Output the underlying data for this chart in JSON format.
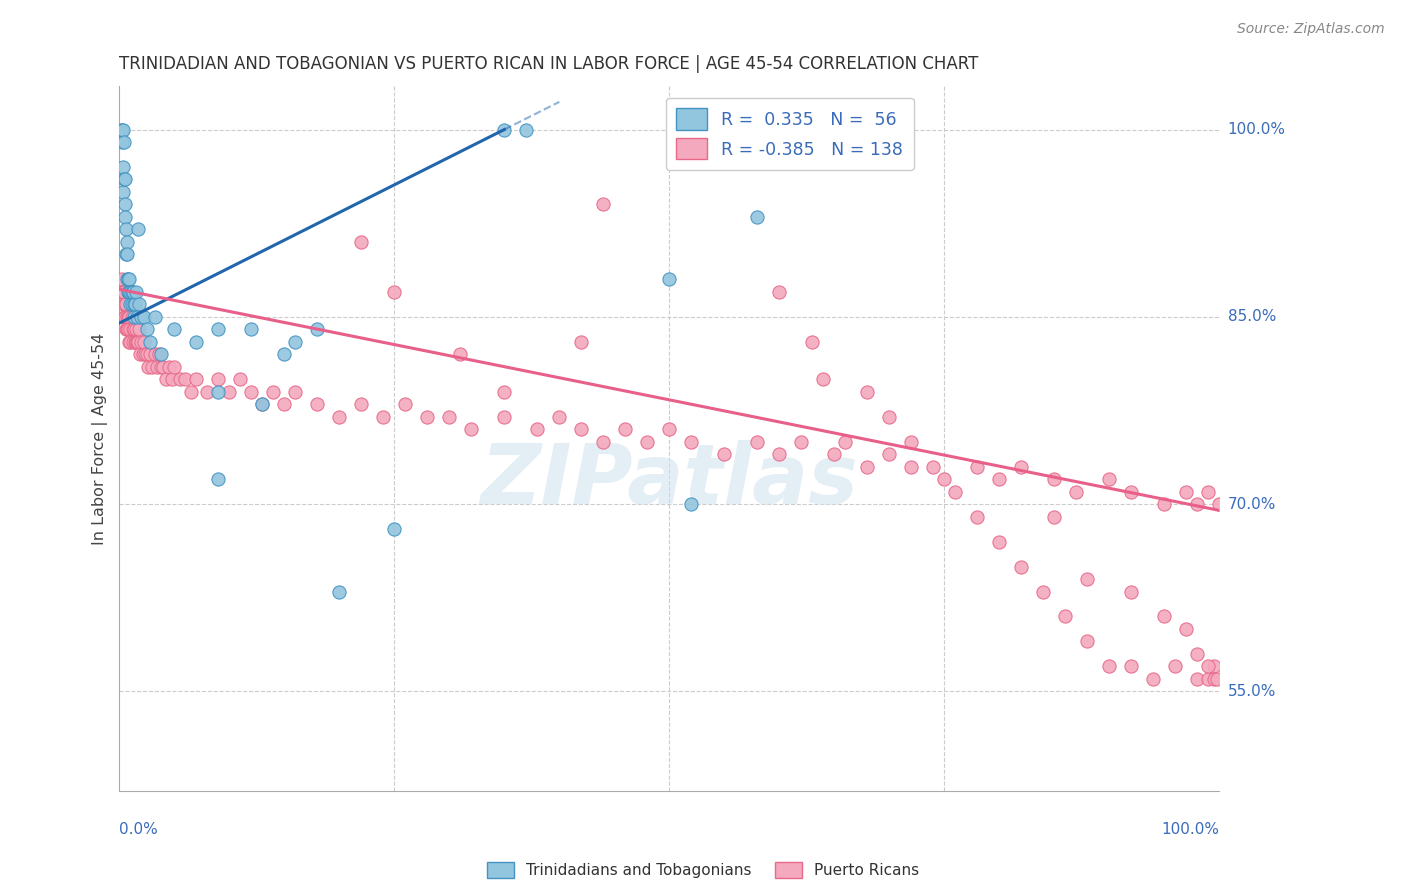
{
  "title": "TRINIDADIAN AND TOBAGONIAN VS PUERTO RICAN IN LABOR FORCE | AGE 45-54 CORRELATION CHART",
  "source": "Source: ZipAtlas.com",
  "ylabel": "In Labor Force | Age 45-54",
  "yticks": [
    "55.0%",
    "70.0%",
    "85.0%",
    "100.0%"
  ],
  "ytick_vals": [
    0.55,
    0.7,
    0.85,
    1.0
  ],
  "legend_blue_r": "0.335",
  "legend_blue_n": "56",
  "legend_pink_r": "-0.385",
  "legend_pink_n": "138",
  "blue_color": "#92c5de",
  "pink_color": "#f4a9be",
  "blue_edge_color": "#4393c3",
  "pink_edge_color": "#e8698a",
  "blue_line_color": "#2166ac",
  "pink_line_color": "#e8608a",
  "watermark": "ZIPatlas",
  "blue_line_x0": 0.0,
  "blue_line_y0": 0.845,
  "blue_line_x1": 0.35,
  "blue_line_y1": 1.0,
  "pink_line_x0": 0.0,
  "pink_line_y0": 0.872,
  "pink_line_x1": 1.0,
  "pink_line_y1": 0.695,
  "xlim_min": 0.0,
  "xlim_max": 1.0,
  "ylim_min": 0.47,
  "ylim_max": 1.035,
  "blue_x": [
    0.001,
    0.002,
    0.002,
    0.003,
    0.003,
    0.003,
    0.004,
    0.004,
    0.005,
    0.005,
    0.005,
    0.006,
    0.006,
    0.007,
    0.007,
    0.007,
    0.008,
    0.008,
    0.009,
    0.009,
    0.01,
    0.01,
    0.011,
    0.011,
    0.012,
    0.013,
    0.013,
    0.014,
    0.015,
    0.016,
    0.017,
    0.018,
    0.02,
    0.022,
    0.025,
    0.028,
    0.032,
    0.038,
    0.05,
    0.07,
    0.09,
    0.12,
    0.15,
    0.18,
    0.09,
    0.13,
    0.16,
    0.09,
    0.35,
    0.37,
    0.5,
    0.52,
    0.58,
    0.62,
    0.2,
    0.25
  ],
  "blue_y": [
    1.0,
    1.0,
    0.99,
    1.0,
    0.97,
    0.95,
    0.99,
    0.96,
    0.96,
    0.94,
    0.93,
    0.92,
    0.9,
    0.91,
    0.9,
    0.88,
    0.88,
    0.87,
    0.88,
    0.87,
    0.87,
    0.86,
    0.87,
    0.86,
    0.87,
    0.86,
    0.85,
    0.86,
    0.87,
    0.85,
    0.92,
    0.86,
    0.85,
    0.85,
    0.84,
    0.83,
    0.85,
    0.82,
    0.84,
    0.83,
    0.84,
    0.84,
    0.82,
    0.84,
    0.79,
    0.78,
    0.83,
    0.72,
    1.0,
    1.0,
    0.88,
    0.7,
    0.93,
    1.0,
    0.63,
    0.68
  ],
  "pink_x": [
    0.001,
    0.002,
    0.002,
    0.003,
    0.003,
    0.004,
    0.004,
    0.005,
    0.005,
    0.006,
    0.006,
    0.007,
    0.007,
    0.008,
    0.008,
    0.009,
    0.009,
    0.01,
    0.01,
    0.011,
    0.012,
    0.012,
    0.013,
    0.014,
    0.015,
    0.015,
    0.016,
    0.017,
    0.018,
    0.019,
    0.02,
    0.021,
    0.022,
    0.023,
    0.025,
    0.026,
    0.028,
    0.03,
    0.032,
    0.034,
    0.036,
    0.038,
    0.04,
    0.042,
    0.045,
    0.048,
    0.05,
    0.055,
    0.06,
    0.065,
    0.07,
    0.08,
    0.09,
    0.1,
    0.11,
    0.12,
    0.13,
    0.14,
    0.15,
    0.16,
    0.18,
    0.2,
    0.22,
    0.24,
    0.26,
    0.28,
    0.3,
    0.32,
    0.35,
    0.38,
    0.4,
    0.42,
    0.44,
    0.46,
    0.48,
    0.5,
    0.52,
    0.55,
    0.58,
    0.6,
    0.62,
    0.65,
    0.68,
    0.7,
    0.72,
    0.75,
    0.78,
    0.8,
    0.82,
    0.85,
    0.87,
    0.9,
    0.92,
    0.95,
    0.97,
    0.98,
    0.99,
    1.0,
    0.22,
    0.35,
    0.44,
    0.25,
    0.31,
    0.42,
    0.6,
    0.63,
    0.64,
    0.66,
    0.68,
    0.7,
    0.72,
    0.74,
    0.76,
    0.78,
    0.8,
    0.82,
    0.84,
    0.86,
    0.88,
    0.9,
    0.92,
    0.94,
    0.96,
    0.98,
    0.99,
    0.995,
    0.85,
    0.88,
    0.92,
    0.95,
    0.97,
    0.98,
    0.99,
    0.995,
    0.998
  ],
  "pink_y": [
    0.87,
    0.88,
    0.87,
    0.87,
    0.86,
    0.87,
    0.85,
    0.86,
    0.85,
    0.86,
    0.84,
    0.85,
    0.84,
    0.85,
    0.84,
    0.85,
    0.83,
    0.84,
    0.83,
    0.85,
    0.84,
    0.83,
    0.84,
    0.83,
    0.84,
    0.83,
    0.83,
    0.83,
    0.84,
    0.82,
    0.83,
    0.82,
    0.83,
    0.82,
    0.82,
    0.81,
    0.82,
    0.81,
    0.82,
    0.81,
    0.82,
    0.81,
    0.81,
    0.8,
    0.81,
    0.8,
    0.81,
    0.8,
    0.8,
    0.79,
    0.8,
    0.79,
    0.8,
    0.79,
    0.8,
    0.79,
    0.78,
    0.79,
    0.78,
    0.79,
    0.78,
    0.77,
    0.78,
    0.77,
    0.78,
    0.77,
    0.77,
    0.76,
    0.77,
    0.76,
    0.77,
    0.76,
    0.75,
    0.76,
    0.75,
    0.76,
    0.75,
    0.74,
    0.75,
    0.74,
    0.75,
    0.74,
    0.73,
    0.74,
    0.73,
    0.72,
    0.73,
    0.72,
    0.73,
    0.72,
    0.71,
    0.72,
    0.71,
    0.7,
    0.71,
    0.7,
    0.71,
    0.7,
    0.91,
    0.79,
    0.94,
    0.87,
    0.82,
    0.83,
    0.87,
    0.83,
    0.8,
    0.75,
    0.79,
    0.77,
    0.75,
    0.73,
    0.71,
    0.69,
    0.67,
    0.65,
    0.63,
    0.61,
    0.59,
    0.57,
    0.57,
    0.56,
    0.57,
    0.56,
    0.56,
    0.57,
    0.69,
    0.64,
    0.63,
    0.61,
    0.6,
    0.58,
    0.57,
    0.56,
    0.56
  ]
}
